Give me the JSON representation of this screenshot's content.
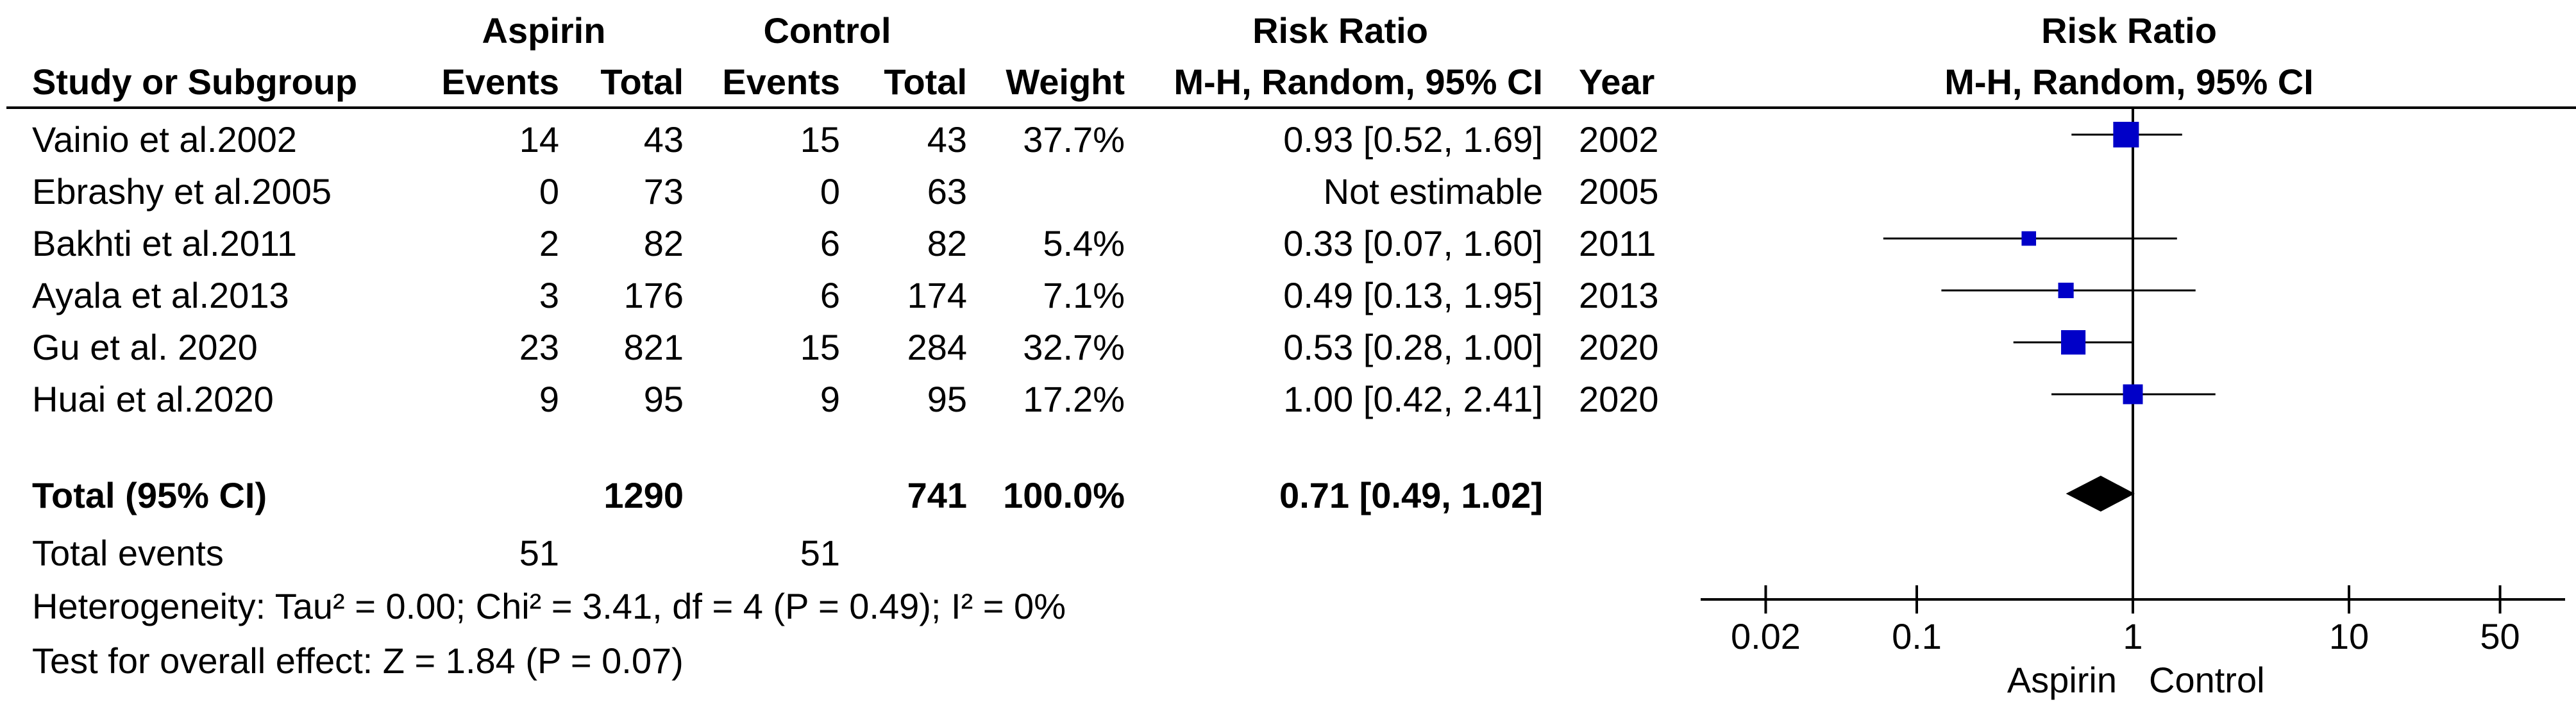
{
  "header": {
    "group_aspirin": "Aspirin",
    "group_control": "Control",
    "effect_title": "Risk Ratio",
    "plot_title": "Risk Ratio",
    "plot_method": "M-H, Random, 95% CI",
    "col_study": "Study or Subgroup",
    "col_events_a": "Events",
    "col_total_a": "Total",
    "col_events_c": "Events",
    "col_total_c": "Total",
    "col_weight": "Weight",
    "col_ci": "M-H, Random, 95% CI",
    "col_year": "Year"
  },
  "studies": [
    {
      "name": "Vainio et al.2002",
      "events_a": "14",
      "total_a": "43",
      "events_c": "15",
      "total_c": "43",
      "weight": "37.7%",
      "ci_text": "0.93 [0.52, 1.69]",
      "year": "2002"
    },
    {
      "name": "Ebrashy et al.2005",
      "events_a": "0",
      "total_a": "73",
      "events_c": "0",
      "total_c": "63",
      "weight": "",
      "ci_text": "Not estimable",
      "year": "2005"
    },
    {
      "name": "Bakhti et al.2011",
      "events_a": "2",
      "total_a": "82",
      "events_c": "6",
      "total_c": "82",
      "weight": "5.4%",
      "ci_text": "0.33 [0.07, 1.60]",
      "year": "2011"
    },
    {
      "name": "Ayala et al.2013",
      "events_a": "3",
      "total_a": "176",
      "events_c": "6",
      "total_c": "174",
      "weight": "7.1%",
      "ci_text": "0.49 [0.13, 1.95]",
      "year": "2013"
    },
    {
      "name": "Gu et al. 2020",
      "events_a": "23",
      "total_a": "821",
      "events_c": "15",
      "total_c": "284",
      "weight": "32.7%",
      "ci_text": "0.53 [0.28, 1.00]",
      "year": "2020"
    },
    {
      "name": "Huai et al.2020",
      "events_a": "9",
      "total_a": "95",
      "events_c": "9",
      "total_c": "95",
      "weight": "17.2%",
      "ci_text": "1.00 [0.42, 2.41]",
      "year": "2020"
    }
  ],
  "total": {
    "label": "Total (95% CI)",
    "total_a": "1290",
    "total_c": "741",
    "weight": "100.0%",
    "ci_text": "0.71 [0.49, 1.02]"
  },
  "events_row": {
    "label": "Total events",
    "events_a": "51",
    "events_c": "51"
  },
  "heterogeneity": "Heterogeneity: Tau² = 0.00; Chi² = 3.41, df = 4 (P = 0.49); I² = 0%",
  "overall_effect": "Test for overall effect: Z = 1.84 (P = 0.07)",
  "colors": {
    "marker": "#0000c8",
    "line": "#000000",
    "diamond": "#000000"
  },
  "chart_data": {
    "type": "forest",
    "x_scale": "log",
    "xlim": [
      0.01,
      100
    ],
    "reference_line": 1,
    "ticks": [
      0.02,
      0.1,
      1,
      10,
      50
    ],
    "tick_labels": [
      "0.02",
      "0.1",
      "1",
      "10",
      "50"
    ],
    "favours_left": "Aspirin",
    "favours_right": "Control",
    "studies": [
      {
        "name": "Vainio et al.2002",
        "rr": 0.93,
        "lower": 0.52,
        "upper": 1.69,
        "weight": 37.7
      },
      {
        "name": "Ebrashy et al.2005",
        "rr": null,
        "lower": null,
        "upper": null,
        "weight": null
      },
      {
        "name": "Bakhti et al.2011",
        "rr": 0.33,
        "lower": 0.07,
        "upper": 1.6,
        "weight": 5.4
      },
      {
        "name": "Ayala et al.2013",
        "rr": 0.49,
        "lower": 0.13,
        "upper": 1.95,
        "weight": 7.1
      },
      {
        "name": "Gu et al. 2020",
        "rr": 0.53,
        "lower": 0.28,
        "upper": 1.0,
        "weight": 32.7
      },
      {
        "name": "Huai et al.2020",
        "rr": 1.0,
        "lower": 0.42,
        "upper": 2.41,
        "weight": 17.2
      }
    ],
    "pooled": {
      "rr": 0.71,
      "lower": 0.49,
      "upper": 1.02
    }
  }
}
